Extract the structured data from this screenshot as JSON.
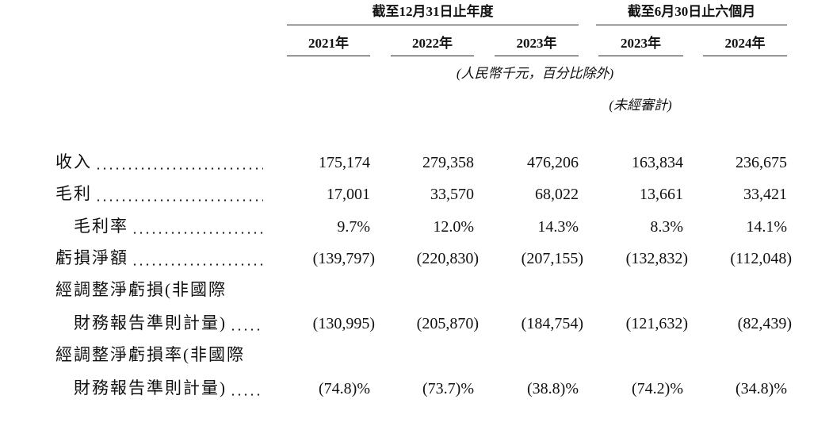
{
  "header": {
    "groups": [
      "截至12月31日止年度",
      "截至6月30日止六個月"
    ],
    "years": [
      "2021年",
      "2022年",
      "2023年",
      "2023年",
      "2024年"
    ],
    "unit_note": "(人民幣千元，百分比除外)",
    "unaudited_note": "(未經審計)"
  },
  "table": {
    "rows": [
      {
        "label": [
          "收入"
        ],
        "values": [
          "175,174",
          "279,358",
          "476,206",
          "163,834",
          "236,675"
        ]
      },
      {
        "label": [
          "毛利"
        ],
        "values": [
          "17,001",
          "33,570",
          "68,022",
          "13,661",
          "33,421"
        ]
      },
      {
        "label": [
          "毛利率"
        ],
        "values": [
          "9.7%",
          "12.0%",
          "14.3%",
          "8.3%",
          "14.1%"
        ]
      },
      {
        "label": [
          "虧損淨額"
        ],
        "values": [
          "(139,797)",
          "(220,830)",
          "(207,155)",
          "(132,832)",
          "(112,048)"
        ]
      },
      {
        "label": [
          "經調整淨虧損(非國際",
          "財務報告準則計量)"
        ],
        "values": [
          "(130,995)",
          "(205,870)",
          "(184,754)",
          "(121,632)",
          "(82,439)"
        ]
      },
      {
        "label": [
          "經調整淨虧損率(非國際",
          "財務報告準則計量)"
        ],
        "values": [
          "(74.8)%",
          "(73.7)%",
          "(38.8)%",
          "(74.2)%",
          "(34.8)%"
        ]
      }
    ]
  }
}
